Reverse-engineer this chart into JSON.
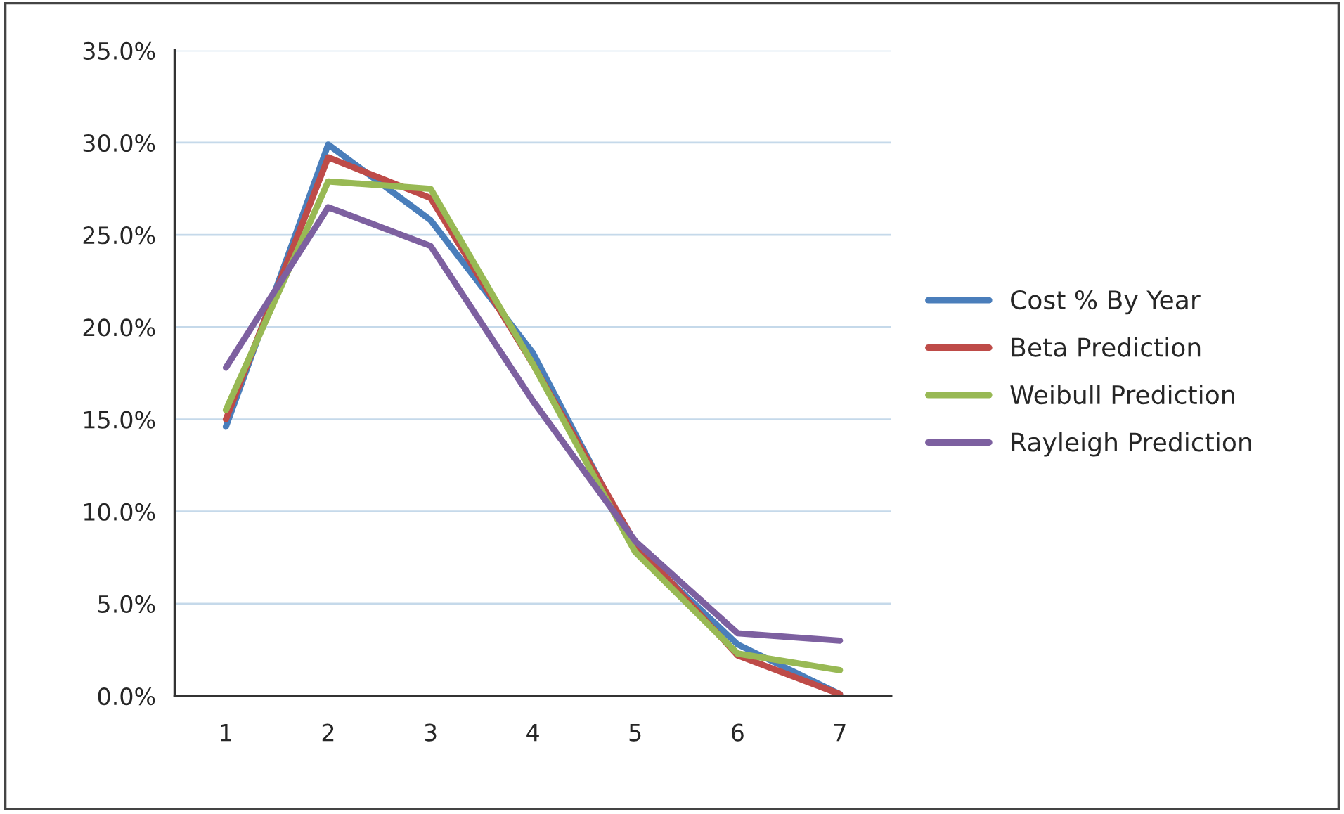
{
  "chart_data": {
    "type": "line",
    "categories": [
      "1",
      "2",
      "3",
      "4",
      "5",
      "6",
      "7"
    ],
    "series": [
      {
        "name": "Cost % By Year",
        "color": "#4a7ebb",
        "values": [
          14.6,
          29.9,
          25.8,
          18.6,
          8.0,
          2.8,
          0.1
        ]
      },
      {
        "name": "Beta Prediction",
        "color": "#be4b48",
        "values": [
          15.0,
          29.2,
          27.0,
          18.0,
          8.3,
          2.2,
          0.1
        ]
      },
      {
        "name": "Weibull Prediction",
        "color": "#98b954",
        "values": [
          15.5,
          27.9,
          27.5,
          18.0,
          7.8,
          2.3,
          1.4
        ]
      },
      {
        "name": "Rayleigh Prediction",
        "color": "#7d60a0",
        "values": [
          17.8,
          26.5,
          24.4,
          16.0,
          8.4,
          3.4,
          3.0
        ]
      }
    ],
    "ylim": [
      0,
      35
    ],
    "yticks": [
      {
        "value": 0,
        "label": "0.0%"
      },
      {
        "value": 5,
        "label": "5.0%"
      },
      {
        "value": 10,
        "label": "10.0%"
      },
      {
        "value": 15,
        "label": "15.0%"
      },
      {
        "value": 20,
        "label": "20.0%"
      },
      {
        "value": 25,
        "label": "25.0%"
      },
      {
        "value": 30,
        "label": "30.0%"
      },
      {
        "value": 35,
        "label": "35.0%"
      }
    ],
    "grid": "y",
    "legend": "right",
    "marker": "none",
    "line_style": "solid"
  }
}
